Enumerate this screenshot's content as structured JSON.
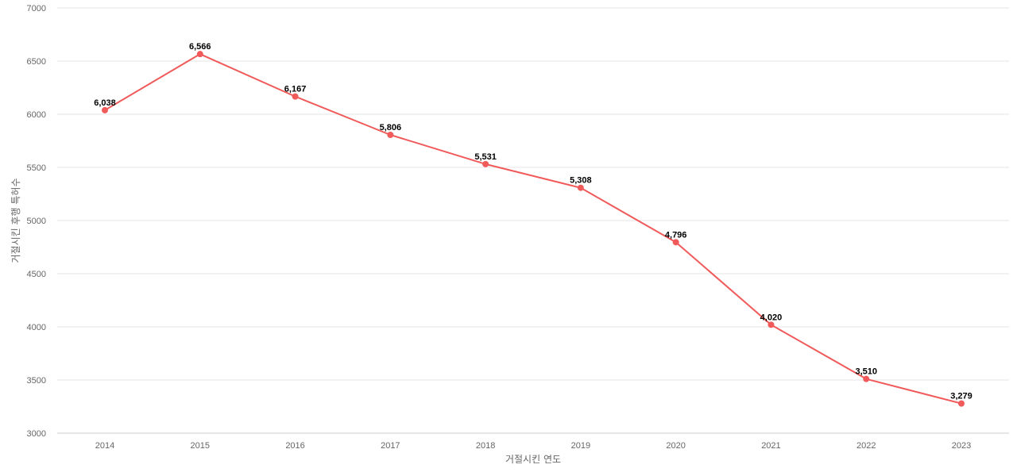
{
  "chart_data": {
    "type": "line",
    "title": "",
    "xlabel": "거절시킨 연도",
    "ylabel": "거절시킨 후행 특허수",
    "categories": [
      "2014",
      "2015",
      "2016",
      "2017",
      "2018",
      "2019",
      "2020",
      "2021",
      "2022",
      "2023"
    ],
    "series": [
      {
        "values": [
          6038,
          6566,
          6167,
          5806,
          5531,
          5308,
          4796,
          4020,
          3510,
          3279
        ],
        "data_labels": [
          "6,038",
          "6,566",
          "6,167",
          "5,806",
          "5,531",
          "5,308",
          "4,796",
          "4,020",
          "3,510",
          "3,279"
        ],
        "color": "#f05a5a"
      }
    ],
    "ylim": [
      3000,
      7000
    ],
    "yticks": [
      3000,
      3500,
      4000,
      4500,
      5000,
      5500,
      6000,
      6500,
      7000
    ],
    "ytick_labels": [
      "3000",
      "3500",
      "4000",
      "4500",
      "5000",
      "5500",
      "6000",
      "6500",
      "7000"
    ],
    "grid": true,
    "legend": "none"
  },
  "colors": {
    "line": "#f05a5a",
    "grid": "#e6e6e6",
    "tick_text": "#666666",
    "label_text": "#000000"
  }
}
